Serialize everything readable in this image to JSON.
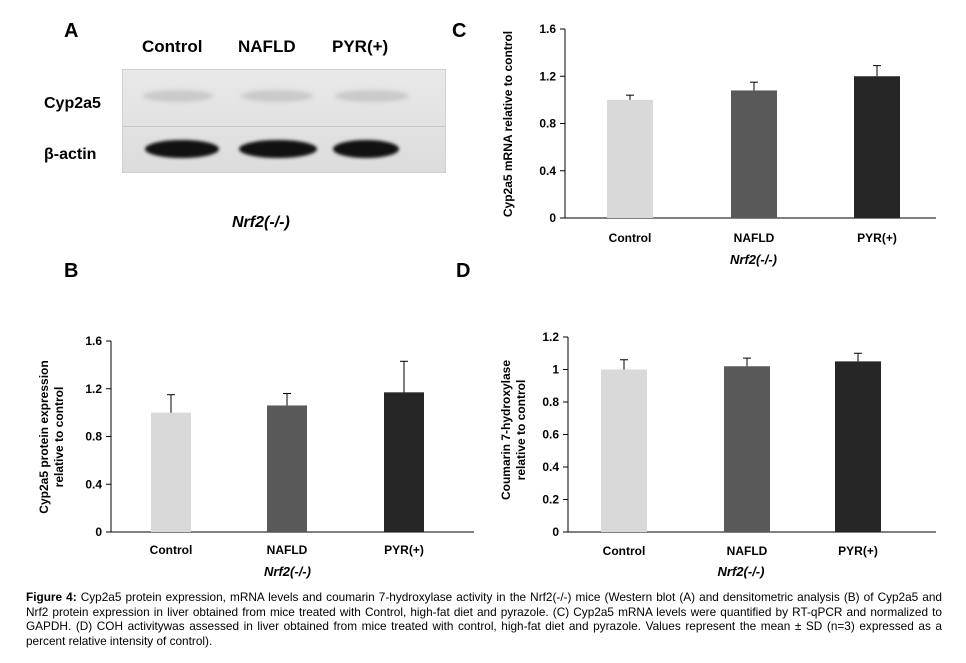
{
  "panels": {
    "A": {
      "letter": "A",
      "lanes": [
        "Control",
        "NAFLD",
        "PYR(+)"
      ],
      "rows": [
        "Cyp2a5",
        "β-actin"
      ],
      "genotype": "Nrf2(-/-)"
    },
    "B": {
      "letter": "B"
    },
    "C": {
      "letter": "C"
    },
    "D": {
      "letter": "D"
    }
  },
  "chart_data": [
    {
      "id": "C",
      "type": "bar",
      "categories": [
        "Control",
        "NAFLD",
        "PYR(+)"
      ],
      "values": [
        1.0,
        1.08,
        1.2
      ],
      "errors": [
        0.04,
        0.07,
        0.09
      ],
      "colors": [
        "#d9d9d9",
        "#595959",
        "#262626"
      ],
      "ylabel": "Cyp2a5 mRNA relative to control",
      "xlabel": "Nrf2(-/-)",
      "ylim": [
        0,
        1.6
      ],
      "yticks": [
        "0",
        "0.4",
        "0.8",
        "1.2",
        "1.6"
      ],
      "ytick_values": [
        0,
        0.4,
        0.8,
        1.2,
        1.6
      ]
    },
    {
      "id": "B",
      "type": "bar",
      "categories": [
        "Control",
        "NAFLD",
        "PYR(+)"
      ],
      "values": [
        1.0,
        1.06,
        1.17
      ],
      "errors": [
        0.15,
        0.1,
        0.26
      ],
      "colors": [
        "#d9d9d9",
        "#595959",
        "#262626"
      ],
      "ylabel": "Cyp2a5 protein expression relative to control",
      "xlabel": "Nrf2(-/-)",
      "ylim": [
        0,
        1.6
      ],
      "yticks": [
        "0",
        "0.4",
        "0.8",
        "1.2",
        "1.6"
      ],
      "ytick_values": [
        0,
        0.4,
        0.8,
        1.2,
        1.6
      ]
    },
    {
      "id": "D",
      "type": "bar",
      "categories": [
        "Control",
        "NAFLD",
        "PYR(+)"
      ],
      "values": [
        1.0,
        1.02,
        1.05
      ],
      "errors": [
        0.06,
        0.05,
        0.05
      ],
      "colors": [
        "#d9d9d9",
        "#595959",
        "#262626"
      ],
      "ylabel": "Coumarin 7-hydroxylase relative to control",
      "xlabel": "Nrf2(-/-)",
      "ylim": [
        0,
        1.2
      ],
      "yticks": [
        "0",
        "0.2",
        "0.4",
        "0.6",
        "0.8",
        "1",
        "1.2"
      ],
      "ytick_values": [
        0,
        0.2,
        0.4,
        0.6,
        0.8,
        1.0,
        1.2
      ]
    }
  ],
  "caption": {
    "label": "Figure 4:",
    "text": "Cyp2a5 protein expression, mRNA levels and coumarin 7-hydroxylase activity in the Nrf2(-/-) mice (Western blot (A) and densitometric analysis (B) of Cyp2a5 and Nrf2 protein expression in liver obtained from mice treated with Control, high-fat diet and pyrazole. (C) Cyp2a5 mRNA levels were quantified by RT-qPCR and normalized to GAPDH. (D) COH activitywas assessed in liver obtained from mice treated with control, high-fat diet and pyrazole. Values represent the mean ± SD (n=3) expressed as a percent relative intensity of control)."
  }
}
